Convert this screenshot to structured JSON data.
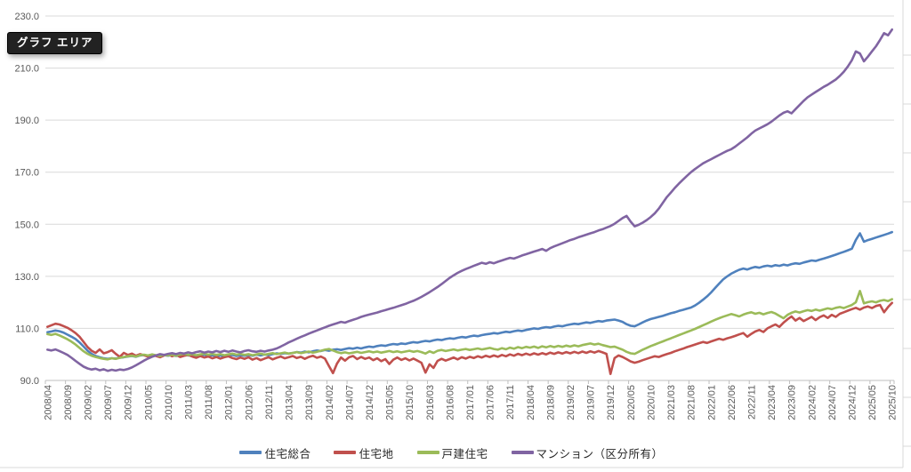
{
  "tooltip": {
    "text": "グラフ エリア"
  },
  "chart_data": {
    "type": "line",
    "title": "",
    "xlabel": "",
    "ylabel": "",
    "ylim": [
      90,
      230
    ],
    "y_ticks": [
      90,
      110,
      130,
      150,
      170,
      190,
      210,
      230
    ],
    "grid": true,
    "legend_position": "bottom",
    "x_tick_interval_categories": 5,
    "x_tick_labels": [
      "2008/04",
      "2008/09",
      "2009/02",
      "2009/07",
      "2009/12",
      "2010/05",
      "2010/10",
      "2011/03",
      "2011/08",
      "2012/01",
      "2012/06",
      "2012/11",
      "2013/04",
      "2013/09",
      "2014/02",
      "2014/07",
      "2014/12",
      "2015/05",
      "2015/10",
      "2016/03",
      "2016/08",
      "2017/01",
      "2017/06",
      "2017/11",
      "2018/04",
      "2018/09",
      "2019/02",
      "2019/07",
      "2019/12",
      "2020/05",
      "2020/10",
      "2021/03",
      "2021/08",
      "2022/01",
      "2022/06",
      "2022/11",
      "2023/04",
      "2023/09",
      "2024/02",
      "2024/07",
      "2024/12",
      "2025/05",
      "2025/10"
    ],
    "series": [
      {
        "id": "housing-total",
        "name": "住宅総合",
        "color": "#4F81BD",
        "values": [
          108.5,
          108.8,
          109.2,
          108.9,
          108.4,
          107.6,
          106.8,
          105.9,
          104.6,
          103.0,
          101.4,
          100.2,
          99.4,
          98.9,
          98.5,
          98.3,
          98.5,
          98.4,
          98.7,
          98.9,
          99.2,
          99.4,
          99.1,
          99.6,
          99.8,
          99.5,
          99.9,
          99.6,
          99.3,
          99.7,
          99.5,
          99.8,
          99.4,
          99.9,
          100.1,
          99.6,
          99.8,
          99.3,
          99.6,
          99.9,
          99.5,
          99.7,
          99.3,
          99.6,
          99.2,
          99.5,
          99.8,
          99.4,
          99.7,
          99.5,
          99.8,
          99.5,
          99.9,
          99.6,
          100.0,
          99.7,
          100.1,
          100.4,
          100.2,
          100.5,
          100.3,
          100.6,
          100.9,
          100.7,
          101.1,
          100.8,
          101.2,
          101.5,
          101.3,
          101.7,
          101.4,
          101.8,
          102.0,
          101.7,
          102.1,
          102.4,
          102.2,
          102.6,
          102.3,
          102.7,
          103.0,
          102.8,
          103.2,
          103.5,
          103.3,
          103.7,
          104.0,
          103.8,
          104.2,
          104.0,
          104.4,
          104.7,
          104.5,
          104.9,
          105.2,
          105.0,
          105.4,
          105.7,
          105.5,
          105.9,
          106.2,
          106.0,
          106.4,
          106.7,
          106.5,
          106.9,
          107.2,
          107.0,
          107.4,
          107.7,
          107.9,
          108.2,
          108.0,
          108.4,
          108.7,
          108.5,
          108.9,
          109.2,
          109.0,
          109.4,
          109.7,
          110.0,
          109.8,
          110.2,
          110.5,
          110.3,
          110.7,
          111.0,
          110.8,
          111.2,
          111.5,
          111.8,
          111.6,
          112.0,
          112.3,
          112.1,
          112.5,
          112.8,
          112.6,
          113.0,
          113.2,
          113.4,
          113.0,
          112.5,
          111.6,
          111.0,
          110.8,
          111.5,
          112.3,
          113.0,
          113.6,
          114.0,
          114.4,
          114.8,
          115.3,
          115.8,
          116.2,
          116.7,
          117.1,
          117.6,
          118.0,
          118.8,
          119.8,
          121.0,
          122.3,
          123.8,
          125.5,
          127.2,
          128.8,
          130.0,
          131.0,
          131.8,
          132.5,
          133.0,
          132.6,
          133.2,
          133.6,
          133.3,
          133.8,
          134.1,
          133.8,
          134.3,
          134.0,
          134.5,
          134.2,
          134.7,
          135.0,
          134.8,
          135.3,
          135.7,
          136.1,
          135.9,
          136.4,
          136.8,
          137.3,
          137.8,
          138.3,
          138.9,
          139.4,
          140.0,
          140.6,
          144.0,
          146.5,
          143.3,
          143.9,
          144.4,
          144.9,
          145.4,
          145.9,
          146.4,
          147.0
        ]
      },
      {
        "id": "residential-land",
        "name": "住宅地",
        "color": "#C0504D",
        "values": [
          110.6,
          111.2,
          111.8,
          111.5,
          110.9,
          110.2,
          109.3,
          108.2,
          106.8,
          104.8,
          102.8,
          101.4,
          100.6,
          101.9,
          100.4,
          100.9,
          101.6,
          100.2,
          99.1,
          100.6,
          99.8,
          100.3,
          99.5,
          100.1,
          99.7,
          99.2,
          99.9,
          99.4,
          98.9,
          99.6,
          100.1,
          99.3,
          99.8,
          99.0,
          99.5,
          99.8,
          99.2,
          98.7,
          99.4,
          98.8,
          99.2,
          98.5,
          99.0,
          98.4,
          98.9,
          99.3,
          98.6,
          98.2,
          98.8,
          98.3,
          98.9,
          98.0,
          98.6,
          97.8,
          98.4,
          98.9,
          98.1,
          98.7,
          99.2,
          98.5,
          98.9,
          99.4,
          98.6,
          99.1,
          98.3,
          99.0,
          99.5,
          98.7,
          99.2,
          98.4,
          95.5,
          92.8,
          96.5,
          98.8,
          97.6,
          98.9,
          99.4,
          98.2,
          99.0,
          98.3,
          98.8,
          97.8,
          98.5,
          97.4,
          98.2,
          96.3,
          98.0,
          98.8,
          97.9,
          98.5,
          97.7,
          98.4,
          97.6,
          96.8,
          93.0,
          96.2,
          94.8,
          97.5,
          98.3,
          97.6,
          98.2,
          98.8,
          98.1,
          98.9,
          98.4,
          99.1,
          98.6,
          99.3,
          98.8,
          99.5,
          99.0,
          99.6,
          99.1,
          99.8,
          99.3,
          100.0,
          99.5,
          100.2,
          99.7,
          100.3,
          99.8,
          100.4,
          99.9,
          100.5,
          100.0,
          100.7,
          100.2,
          100.8,
          100.3,
          100.9,
          100.4,
          101.0,
          100.5,
          101.1,
          100.6,
          101.2,
          100.7,
          101.3,
          100.8,
          100.2,
          92.5,
          98.6,
          99.6,
          99.0,
          98.2,
          97.3,
          96.8,
          97.2,
          97.8,
          98.3,
          98.8,
          99.3,
          99.0,
          99.6,
          100.1,
          100.6,
          101.2,
          101.7,
          102.2,
          102.8,
          103.3,
          103.8,
          104.3,
          104.8,
          104.4,
          105.0,
          105.5,
          106.0,
          105.6,
          106.2,
          106.6,
          107.1,
          107.7,
          108.2,
          106.8,
          107.9,
          108.8,
          109.4,
          108.6,
          110.0,
          110.8,
          111.5,
          110.6,
          112.2,
          113.5,
          114.6,
          113.0,
          114.0,
          112.8,
          113.6,
          114.4,
          113.2,
          114.3,
          115.0,
          114.0,
          115.2,
          114.4,
          115.6,
          116.2,
          116.8,
          117.4,
          117.9,
          117.2,
          118.0,
          118.4,
          117.8,
          118.6,
          119.0,
          116.2,
          118.2,
          119.8
        ]
      },
      {
        "id": "detached-house",
        "name": "戸建住宅",
        "color": "#9BBB59",
        "values": [
          107.8,
          107.5,
          107.9,
          107.3,
          106.6,
          105.8,
          104.9,
          103.8,
          102.5,
          101.2,
          100.2,
          99.5,
          99.0,
          98.6,
          98.3,
          98.1,
          98.5,
          98.3,
          98.7,
          99.0,
          99.3,
          99.5,
          99.2,
          99.7,
          99.9,
          99.6,
          100.0,
          99.7,
          99.4,
          99.8,
          99.6,
          99.9,
          99.5,
          100.0,
          100.2,
          99.8,
          100.1,
          99.7,
          100.0,
          100.3,
          99.9,
          100.2,
          99.8,
          100.1,
          99.7,
          100.0,
          100.3,
          99.9,
          100.2,
          99.8,
          100.1,
          99.7,
          100.0,
          100.3,
          99.9,
          100.2,
          100.5,
          100.1,
          100.4,
          100.7,
          100.3,
          100.6,
          100.9,
          100.5,
          100.8,
          101.1,
          100.7,
          101.0,
          101.4,
          101.8,
          102.1,
          101.5,
          100.9,
          100.5,
          100.8,
          100.4,
          100.7,
          101.0,
          100.6,
          100.9,
          101.2,
          100.8,
          101.1,
          100.7,
          101.0,
          101.3,
          100.9,
          101.2,
          100.8,
          101.1,
          101.4,
          101.0,
          101.3,
          100.9,
          100.3,
          101.2,
          100.6,
          101.4,
          101.7,
          101.3,
          101.6,
          101.9,
          101.5,
          101.8,
          102.1,
          101.7,
          102.0,
          102.3,
          101.9,
          102.2,
          102.5,
          102.1,
          101.8,
          102.4,
          102.0,
          102.6,
          102.2,
          102.8,
          102.4,
          102.9,
          102.6,
          103.0,
          102.5,
          103.1,
          102.7,
          103.2,
          102.8,
          103.3,
          102.9,
          103.4,
          103.0,
          103.5,
          103.1,
          103.6,
          103.9,
          104.2,
          103.8,
          104.1,
          103.6,
          103.2,
          102.8,
          103.0,
          102.4,
          101.8,
          101.0,
          100.4,
          100.2,
          101.0,
          101.8,
          102.5,
          103.2,
          103.8,
          104.4,
          105.0,
          105.6,
          106.2,
          106.8,
          107.4,
          108.0,
          108.6,
          109.2,
          109.8,
          110.5,
          111.2,
          111.9,
          112.6,
          113.3,
          113.9,
          114.5,
          115.0,
          115.5,
          115.1,
          114.6,
          115.3,
          115.8,
          116.2,
          115.6,
          116.0,
          115.4,
          115.9,
          116.3,
          115.7,
          114.8,
          113.9,
          115.2,
          116.0,
          116.5,
          116.1,
          116.6,
          117.0,
          116.7,
          117.2,
          116.8,
          117.3,
          117.7,
          117.4,
          117.9,
          118.2,
          117.8,
          118.4,
          119.0,
          120.0,
          124.4,
          119.6,
          120.1,
          120.4,
          120.0,
          120.6,
          120.9,
          120.5,
          121.2
        ]
      },
      {
        "id": "condominium",
        "name": "マンション（区分所有）",
        "color": "#8064A2",
        "values": [
          101.8,
          101.5,
          101.9,
          101.3,
          100.6,
          99.8,
          98.7,
          97.5,
          96.4,
          95.3,
          94.6,
          94.2,
          94.5,
          93.9,
          94.3,
          93.7,
          94.1,
          93.8,
          94.2,
          94.0,
          94.4,
          95.0,
          95.8,
          96.7,
          97.6,
          98.4,
          99.1,
          99.6,
          100.1,
          99.8,
          100.2,
          100.5,
          100.1,
          100.6,
          100.3,
          100.8,
          100.4,
          100.9,
          101.2,
          100.7,
          101.1,
          100.8,
          101.3,
          100.9,
          101.4,
          101.0,
          101.5,
          101.1,
          100.8,
          101.3,
          101.6,
          101.2,
          101.0,
          101.4,
          101.1,
          101.5,
          101.8,
          102.3,
          103.0,
          103.8,
          104.6,
          105.3,
          106.0,
          106.7,
          107.3,
          108.0,
          108.6,
          109.2,
          109.8,
          110.4,
          111.0,
          111.5,
          112.0,
          112.5,
          112.2,
          112.8,
          113.3,
          113.8,
          114.4,
          114.9,
          115.3,
          115.7,
          116.1,
          116.6,
          117.0,
          117.5,
          117.9,
          118.4,
          118.9,
          119.4,
          120.0,
          120.6,
          121.3,
          122.1,
          123.0,
          123.9,
          124.9,
          125.9,
          127.0,
          128.2,
          129.4,
          130.4,
          131.3,
          132.1,
          132.8,
          133.4,
          134.0,
          134.6,
          135.2,
          134.8,
          135.4,
          135.0,
          135.6,
          136.1,
          136.6,
          137.1,
          136.8,
          137.4,
          138.0,
          138.5,
          139.0,
          139.5,
          140.0,
          140.5,
          139.8,
          140.8,
          141.5,
          142.1,
          142.7,
          143.3,
          143.9,
          144.4,
          145.0,
          145.5,
          146.0,
          146.5,
          147.0,
          147.6,
          148.1,
          148.7,
          149.3,
          150.2,
          151.3,
          152.4,
          153.2,
          151.0,
          149.2,
          149.8,
          150.6,
          151.6,
          152.8,
          154.2,
          156.0,
          158.2,
          160.4,
          162.2,
          164.0,
          165.6,
          167.1,
          168.6,
          170.0,
          171.2,
          172.3,
          173.4,
          174.2,
          175.0,
          175.8,
          176.6,
          177.4,
          178.2,
          178.8,
          179.8,
          181.0,
          182.2,
          183.4,
          184.8,
          186.0,
          186.8,
          187.6,
          188.4,
          189.4,
          190.6,
          191.8,
          192.8,
          193.4,
          192.6,
          194.2,
          195.8,
          197.4,
          198.8,
          199.8,
          200.8,
          201.8,
          202.8,
          203.6,
          204.6,
          205.6,
          207.0,
          208.6,
          210.6,
          213.0,
          216.4,
          215.6,
          212.6,
          214.4,
          216.4,
          218.4,
          220.8,
          223.4,
          222.6,
          224.8
        ]
      }
    ]
  }
}
